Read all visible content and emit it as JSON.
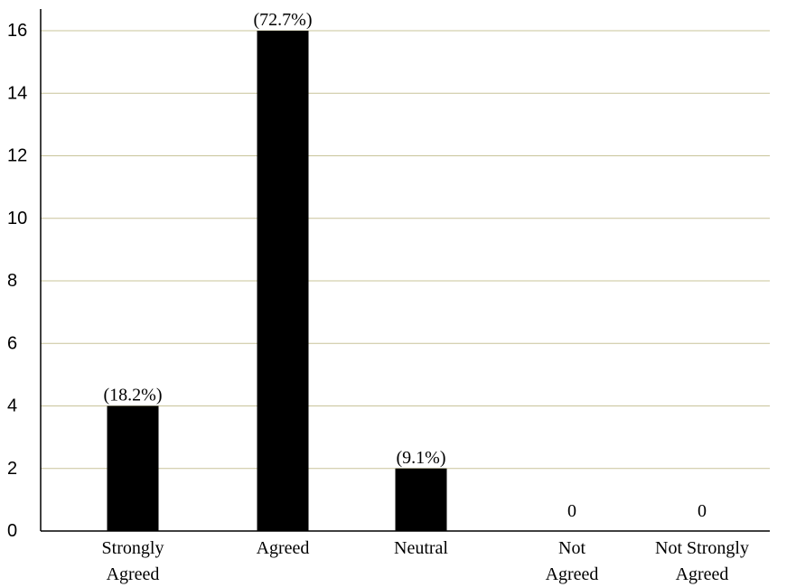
{
  "chart_data": {
    "type": "bar",
    "categories": [
      [
        "Strongly",
        "Agreed"
      ],
      [
        "Agreed"
      ],
      [
        "Neutral"
      ],
      [
        "Not",
        "Agreed"
      ],
      [
        "Not Strongly",
        "Agreed"
      ]
    ],
    "values": [
      4,
      16,
      2,
      0,
      0
    ],
    "data_labels": [
      "(18.2%)",
      "(72.7%)",
      "(9.1%)",
      "0",
      "0"
    ],
    "yticks": [
      0,
      2,
      4,
      6,
      8,
      10,
      12,
      14,
      16
    ],
    "ylim": [
      0,
      16
    ],
    "grid": true,
    "bar_color": "#000000",
    "grid_color": "#c9c49a"
  }
}
